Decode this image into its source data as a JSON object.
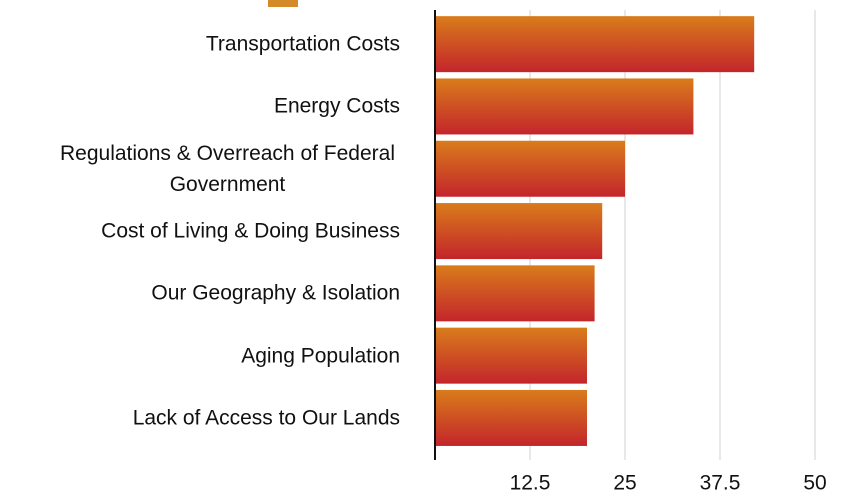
{
  "chart_data": {
    "type": "barh",
    "categories": [
      "Transportation Costs",
      "Energy Costs",
      "Regulations & Overreach of Federal Government",
      "Cost of Living & Doing Business",
      "Our Geography & Isolation",
      "Aging Population",
      "Lack of Access to Our Lands"
    ],
    "values": [
      42,
      34,
      25,
      22,
      21,
      20,
      20
    ],
    "color": [
      "#d97c1b",
      "#c3252b"
    ],
    "xlim": [
      0,
      50
    ],
    "xticks": [
      12.5,
      25,
      37.5,
      50
    ],
    "grid": true
  }
}
